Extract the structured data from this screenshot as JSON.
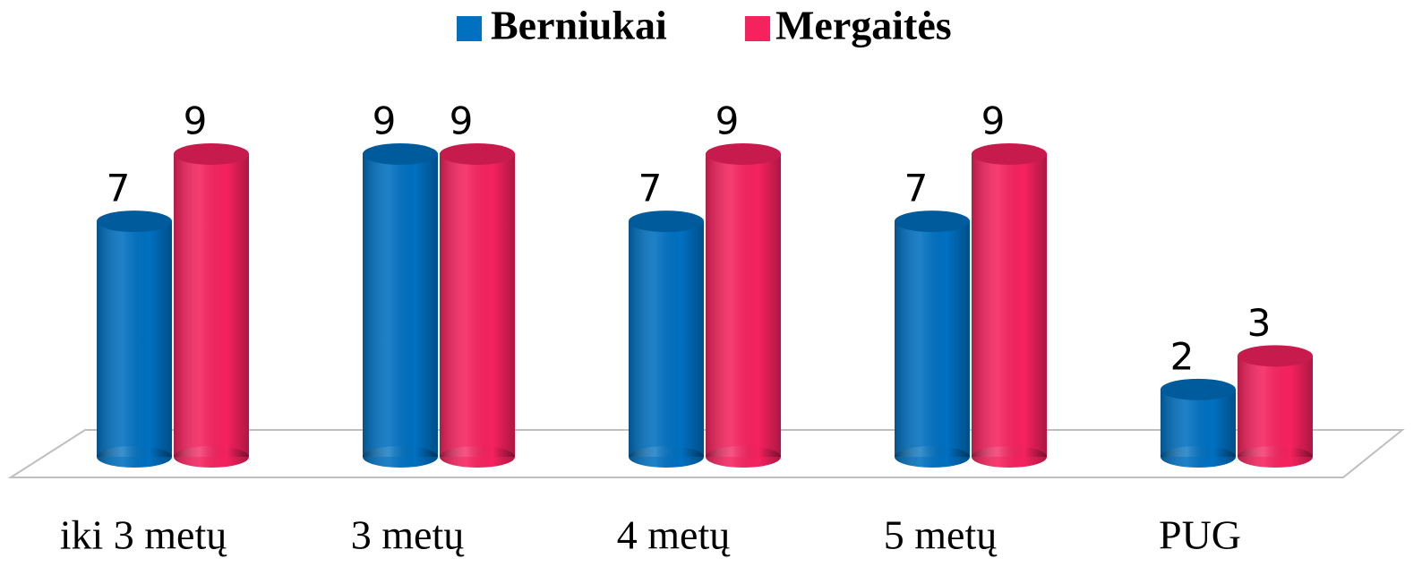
{
  "chart_data": {
    "type": "bar",
    "categories": [
      "iki 3 metų",
      "3 metų",
      "4 metų",
      "5 metų",
      "PUG"
    ],
    "series": [
      {
        "name": "Berniukai",
        "color": "#0070c0",
        "values": [
          7,
          9,
          7,
          7,
          2
        ]
      },
      {
        "name": "Mergaitės",
        "color": "#f5225e",
        "values": [
          9,
          9,
          9,
          9,
          3
        ]
      }
    ],
    "legend": "top"
  }
}
